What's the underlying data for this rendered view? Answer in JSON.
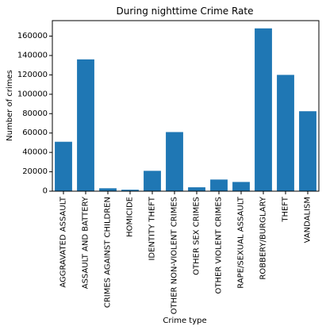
{
  "chart_data": {
    "type": "bar",
    "title": "During nighttime Crime Rate",
    "xlabel": "Crime type",
    "ylabel": "Number of crimes",
    "categories": [
      "AGGRAVATED ASSAULT",
      "ASSAULT AND BATTERY",
      "CRIMES AGAINST CHILDREN",
      "HOMICIDE",
      "IDENTITY THEFT",
      "OTHER NON-VIOLENT CRIMES",
      "OTHER SEX CRIMES",
      "OTHER VIOLENT CRIMES",
      "RAPE/SEXUAL ASSAULT",
      "ROBBERY/BURGLARY",
      "THEFT",
      "VANDALISM"
    ],
    "values": [
      51000,
      136000,
      3000,
      1500,
      21000,
      61000,
      4000,
      12000,
      9500,
      168000,
      120000,
      82500
    ],
    "ylim": [
      0,
      176000
    ],
    "yticks": [
      0,
      20000,
      40000,
      60000,
      80000,
      100000,
      120000,
      140000,
      160000
    ],
    "bar_color": "#1f77b4",
    "grid": false,
    "legend": "none"
  }
}
